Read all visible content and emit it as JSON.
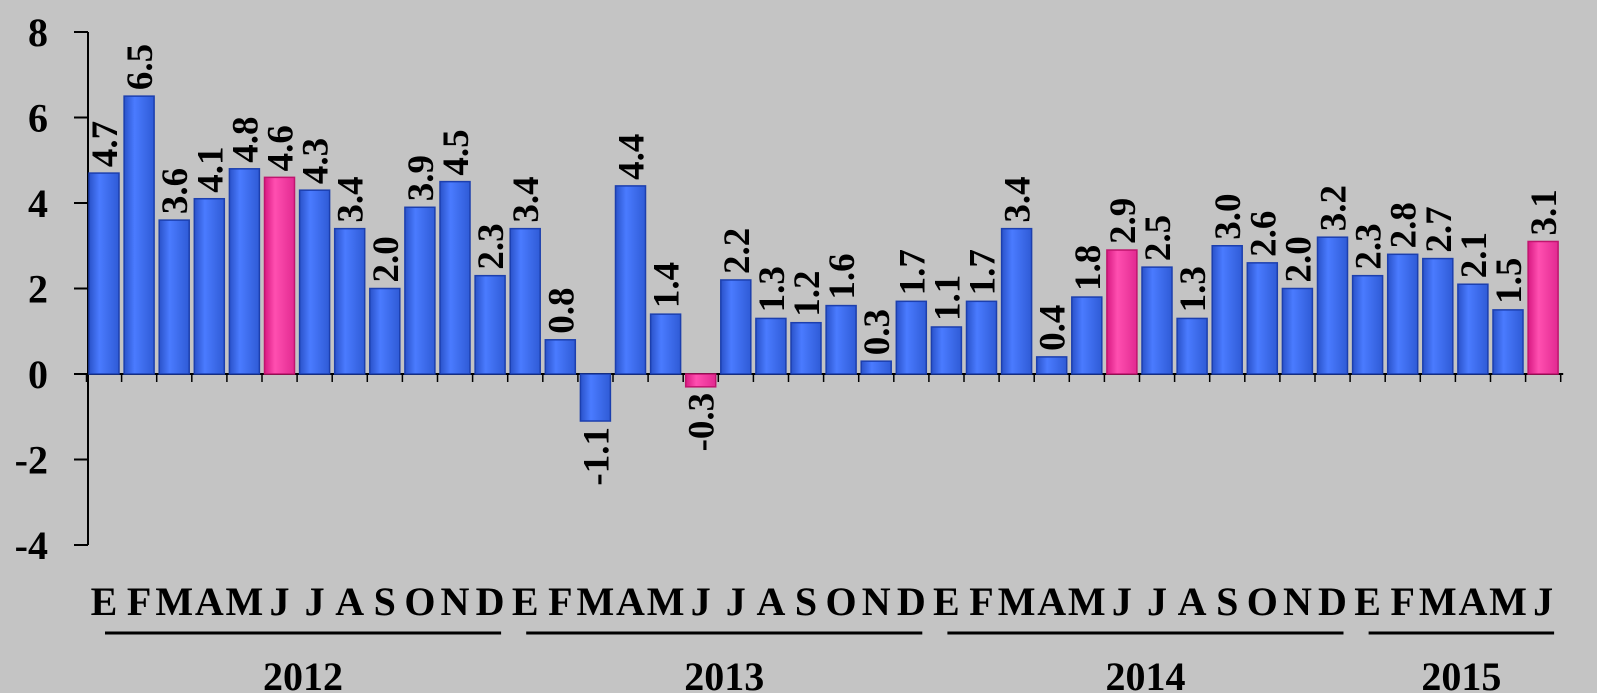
{
  "chart_data": {
    "type": "bar",
    "ylim": [
      -4,
      8
    ],
    "yticks": [
      "-4",
      "-2",
      "0",
      "2",
      "4",
      "6",
      "8"
    ],
    "categories": [
      "E",
      "F",
      "M",
      "A",
      "M",
      "J",
      "J",
      "A",
      "S",
      "O",
      "N",
      "D",
      "E",
      "F",
      "M",
      "A",
      "M",
      "J",
      "J",
      "A",
      "S",
      "O",
      "N",
      "D",
      "E",
      "F",
      "M",
      "A",
      "M",
      "J",
      "J",
      "A",
      "S",
      "O",
      "N",
      "D",
      "E",
      "F",
      "M",
      "A",
      "M",
      "J"
    ],
    "values": [
      4.7,
      6.5,
      3.6,
      4.1,
      4.8,
      4.6,
      4.3,
      3.4,
      2.0,
      3.9,
      4.5,
      2.3,
      3.4,
      0.8,
      -1.1,
      4.4,
      1.4,
      -0.3,
      2.2,
      1.3,
      1.2,
      1.6,
      0.3,
      1.7,
      1.1,
      1.7,
      3.4,
      0.4,
      1.8,
      2.9,
      2.5,
      1.3,
      3.0,
      2.6,
      2.0,
      3.2,
      2.3,
      2.8,
      2.7,
      2.1,
      1.5,
      3.1
    ],
    "value_labels": [
      "4.7",
      "6.5",
      "3.6",
      "4.1",
      "4.8",
      "4.6",
      "4.3",
      "3.4",
      "2.0",
      "3.9",
      "4.5",
      "2.3",
      "3.4",
      "0.8",
      "-1.1",
      "4.4",
      "1.4",
      "-0.3",
      "2.2",
      "1.3",
      "1.2",
      "1.6",
      "0.3",
      "1.7",
      "1.1",
      "1.7",
      "3.4",
      "0.4",
      "1.8",
      "2.9",
      "2.5",
      "1.3",
      "3.0",
      "2.6",
      "2.0",
      "3.2",
      "2.3",
      "2.8",
      "2.7",
      "2.1",
      "1.5",
      "3.1"
    ],
    "highlighted_indices": [
      5,
      17,
      29,
      41
    ],
    "years": [
      {
        "label": "2012",
        "start": 0,
        "end": 11
      },
      {
        "label": "2013",
        "start": 12,
        "end": 23
      },
      {
        "label": "2014",
        "start": 24,
        "end": 35
      },
      {
        "label": "2015",
        "start": 36,
        "end": 41
      }
    ],
    "grid": false,
    "colors": {
      "bar": "#3f6de8",
      "bar_dark": "#1c3fae",
      "highlight": "#ff3ca0",
      "highlight_dark": "#c0156e",
      "background": "#c4c4c4",
      "axis": "#000000"
    }
  }
}
